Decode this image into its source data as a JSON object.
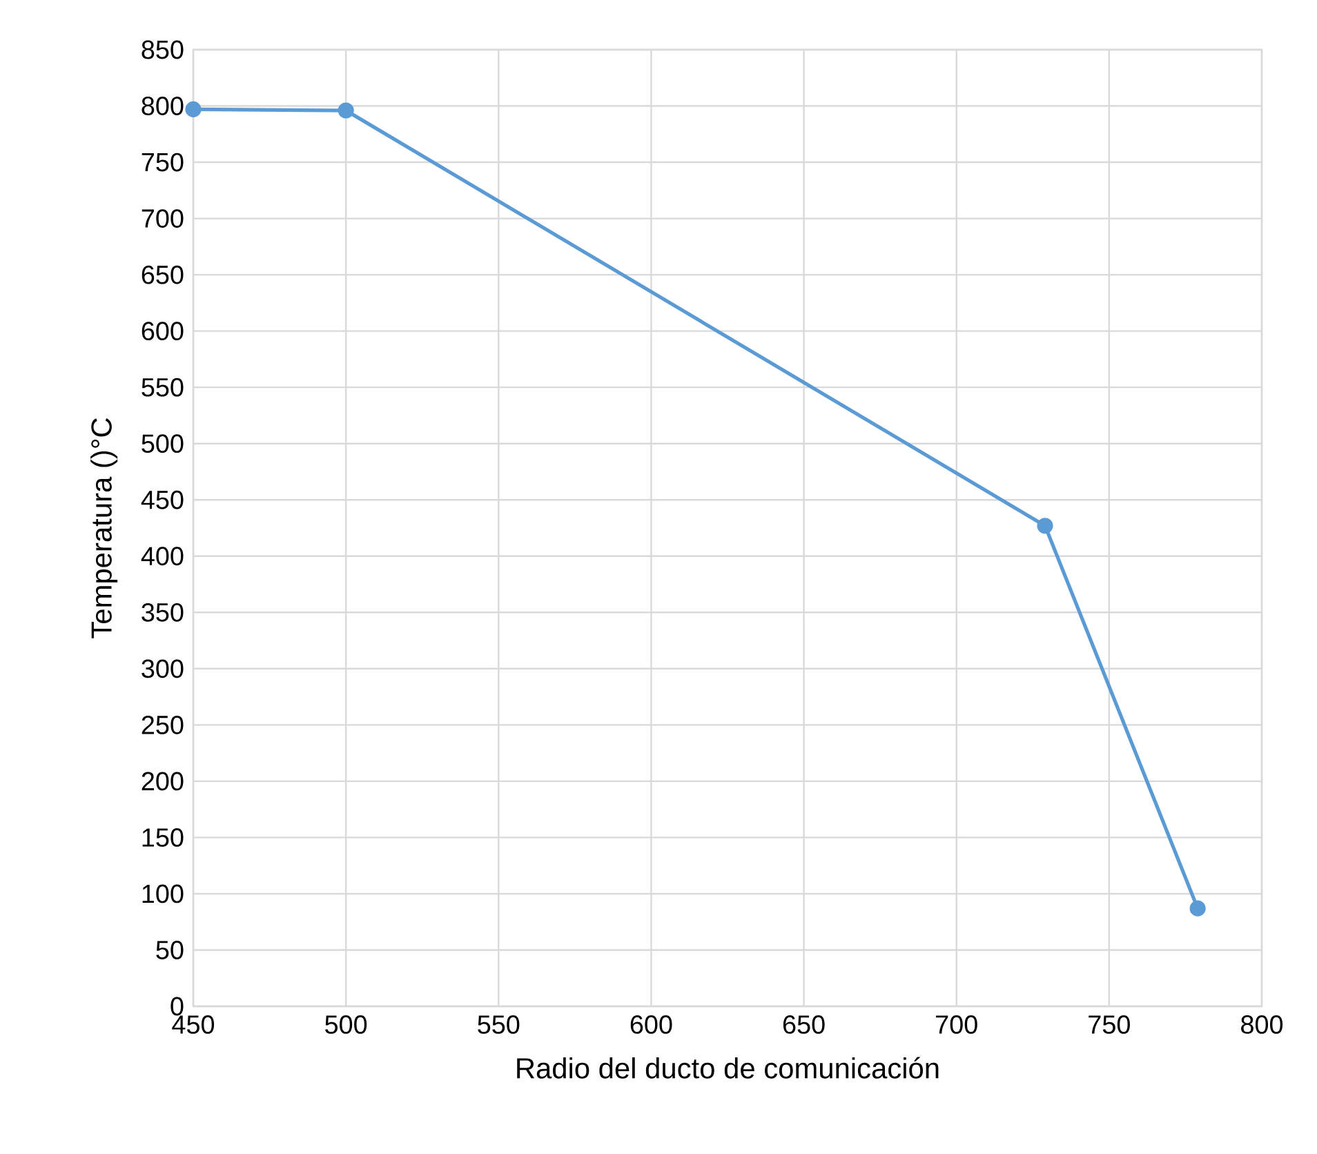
{
  "chart_data": {
    "type": "line",
    "xlabel": "Radio del ducto de comunicación",
    "ylabel": "Temperatura ()°C",
    "x": [
      450,
      500,
      729,
      779
    ],
    "series": [
      {
        "color": "#5b9bd5",
        "values": [
          797,
          796,
          427,
          87
        ]
      }
    ],
    "xlim": [
      450,
      800
    ],
    "xticks": [
      450,
      500,
      550,
      600,
      650,
      700,
      750,
      800
    ],
    "ylim": [
      0,
      850
    ],
    "yticks": [
      0,
      50,
      100,
      150,
      200,
      250,
      300,
      350,
      400,
      450,
      500,
      550,
      600,
      650,
      700,
      750,
      800,
      850
    ],
    "grid": true,
    "marker": "circle",
    "line_style": "solid"
  }
}
